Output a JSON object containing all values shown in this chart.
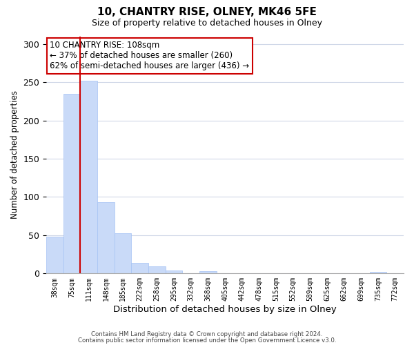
{
  "title": "10, CHANTRY RISE, OLNEY, MK46 5FE",
  "subtitle": "Size of property relative to detached houses in Olney",
  "xlabel": "Distribution of detached houses by size in Olney",
  "ylabel": "Number of detached properties",
  "bar_labels": [
    "38sqm",
    "75sqm",
    "111sqm",
    "148sqm",
    "185sqm",
    "222sqm",
    "258sqm",
    "295sqm",
    "332sqm",
    "368sqm",
    "405sqm",
    "442sqm",
    "478sqm",
    "515sqm",
    "552sqm",
    "589sqm",
    "625sqm",
    "662sqm",
    "699sqm",
    "735sqm",
    "772sqm"
  ],
  "bar_values": [
    48,
    235,
    252,
    93,
    53,
    14,
    9,
    4,
    0,
    3,
    0,
    0,
    0,
    0,
    0,
    0,
    0,
    0,
    0,
    2,
    0
  ],
  "bar_color": "#c9daf8",
  "bar_edge_color": "#a4c2f4",
  "property_line_color": "#cc0000",
  "ylim": [
    0,
    310
  ],
  "yticks": [
    0,
    50,
    100,
    150,
    200,
    250,
    300
  ],
  "annotation_title": "10 CHANTRY RISE: 108sqm",
  "annotation_line1": "← 37% of detached houses are smaller (260)",
  "annotation_line2": "62% of semi-detached houses are larger (436) →",
  "annotation_box_color": "#ffffff",
  "annotation_box_edge": "#cc0000",
  "footer1": "Contains HM Land Registry data © Crown copyright and database right 2024.",
  "footer2": "Contains public sector information licensed under the Open Government Licence v3.0.",
  "background_color": "#ffffff",
  "grid_color": "#d0d8e8"
}
